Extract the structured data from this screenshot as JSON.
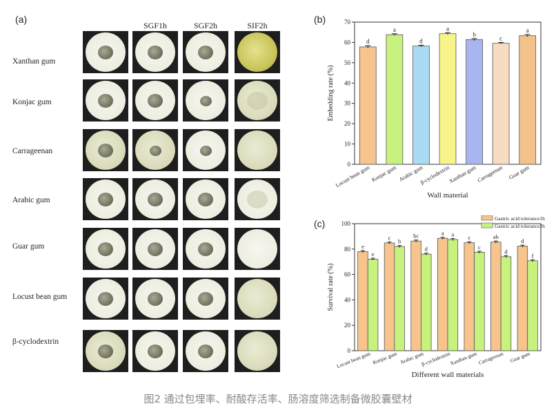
{
  "panels": {
    "a": "(a)",
    "b": "(b)",
    "c": "(c)"
  },
  "columns": [
    "SGF1h",
    "SGF2h",
    "SIF2h"
  ],
  "rows": [
    "Xanthan gum",
    "Konjac gum",
    "Carrageenan",
    "Arabic gum",
    "Guar gum",
    "Locust bean gum",
    "β-cyclodextrin"
  ],
  "caption": "图2 通过包埋率、耐酸存活率、肠溶度筛选制备微胶囊壁材",
  "chart_data": [
    {
      "type": "bar",
      "ylabel": "Embedding rate (%)",
      "xlabel": "Wall material",
      "ylim": [
        0,
        70
      ],
      "yticks": [
        0,
        10,
        20,
        30,
        40,
        50,
        60,
        70
      ],
      "categories": [
        "Locust bean gum",
        "Konjac gum",
        "Arabic gum",
        "β-cyclodextrin",
        "Xanthan gum",
        "Carrageenan",
        "Guar gum"
      ],
      "values": [
        57.8,
        63.8,
        58.2,
        64.3,
        61.4,
        59.6,
        63.3
      ],
      "errors": [
        0.6,
        0.5,
        0.4,
        0.5,
        0.5,
        0.4,
        0.6
      ],
      "labels": [
        "d",
        "a",
        "d",
        "a",
        "b",
        "c",
        "a"
      ],
      "colors": [
        "#f6c48c",
        "#c8f27e",
        "#a9dcf3",
        "#f7f58a",
        "#a9b5f1",
        "#f7dcc2",
        "#f2c28a"
      ]
    },
    {
      "type": "bar",
      "ylabel": "Survival rate (%)",
      "xlabel": "Different wall materials",
      "ylim": [
        0,
        100
      ],
      "yticks": [
        0,
        20,
        40,
        60,
        80,
        100
      ],
      "categories": [
        "Locust bean gum",
        "Konjac gum",
        "Arabic gum",
        "β-cyclodextrin",
        "Xanthan gum",
        "Carrageenan",
        "Guar gum"
      ],
      "legend_position": "top-right",
      "series": [
        {
          "name": "Gastric acid tolerance1h",
          "color": "#f6c48c",
          "values": [
            78.0,
            84.8,
            86.3,
            88.5,
            85.0,
            85.5,
            82.3
          ],
          "labels": [
            "e",
            "c",
            "bc",
            "a",
            "c",
            "ab",
            "d"
          ]
        },
        {
          "name": "Gastric acid tolerance2h",
          "color": "#c8f27e",
          "values": [
            72.0,
            82.0,
            76.0,
            87.5,
            77.5,
            74.0,
            70.8
          ],
          "labels": [
            "e",
            "b",
            "d",
            "a",
            "c",
            "d",
            "f"
          ]
        }
      ]
    }
  ]
}
